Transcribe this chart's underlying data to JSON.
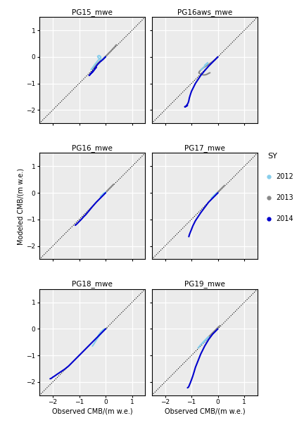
{
  "colors": {
    "2012": "#87CEEB",
    "2013": "#888888",
    "2014": "#0000CD"
  },
  "panel_titles": [
    "PG15_mwe",
    "PG16aws_mwe",
    "PG16_mwe",
    "PG17_mwe",
    "PG18_mwe",
    "PG19_mwe"
  ],
  "xlim": [
    -2.5,
    1.5
  ],
  "ylim": [
    -2.5,
    1.5
  ],
  "xticks": [
    -2,
    -1,
    0,
    1
  ],
  "yticks": [
    -2,
    -1,
    0,
    1
  ],
  "xlabel": "Observed CMB/(m w.e.)",
  "ylabel": "Modeled CMB/(m w.e.)",
  "legend_title": "SY",
  "legend_years": [
    "2012",
    "2013",
    "2014"
  ],
  "bg_color": "#ebebeb",
  "grid_color": "#ffffff",
  "title_fontsize": 7.5,
  "tick_fontsize": 6.5,
  "label_fontsize": 7,
  "linewidth": 1.5,
  "curves": {
    "PG15_mwe": {
      "2013": {
        "x": [
          -0.5,
          -0.4,
          -0.3,
          -0.2,
          -0.1,
          -0.05,
          0.0,
          0.1,
          0.2,
          0.3,
          0.35,
          0.38,
          0.4
        ],
        "y": [
          -0.45,
          -0.35,
          -0.25,
          -0.15,
          -0.07,
          -0.02,
          0.02,
          0.12,
          0.22,
          0.33,
          0.38,
          0.42,
          0.45
        ]
      },
      "2012": {
        "x": [
          -0.55,
          -0.5,
          -0.45,
          -0.4,
          -0.35,
          -0.3,
          -0.25,
          -0.2,
          -0.18,
          -0.2,
          -0.25,
          -0.3,
          -0.28,
          -0.22,
          -0.15,
          -0.1,
          -0.05,
          0.0
        ],
        "y": [
          -0.48,
          -0.42,
          -0.35,
          -0.28,
          -0.22,
          -0.15,
          -0.1,
          -0.05,
          -0.02,
          0.02,
          0.05,
          0.02,
          -0.03,
          -0.08,
          -0.12,
          -0.08,
          -0.03,
          0.0
        ]
      },
      "2014": {
        "x": [
          0.0,
          -0.05,
          -0.1,
          -0.2,
          -0.3,
          -0.35,
          -0.4,
          -0.42,
          -0.45,
          -0.5,
          -0.55,
          -0.58,
          -0.6,
          -0.62,
          -0.6,
          -0.55,
          -0.5,
          -0.45,
          -0.4,
          -0.35
        ],
        "y": [
          0.0,
          -0.05,
          -0.1,
          -0.18,
          -0.28,
          -0.35,
          -0.42,
          -0.48,
          -0.52,
          -0.58,
          -0.62,
          -0.65,
          -0.68,
          -0.7,
          -0.68,
          -0.62,
          -0.56,
          -0.5,
          -0.45,
          -0.4
        ]
      }
    },
    "PG16aws_mwe": {
      "2013": {
        "x": [
          0.0,
          -0.05,
          -0.1,
          -0.2,
          -0.3,
          -0.4,
          -0.5,
          -0.6,
          -0.65,
          -0.7,
          -0.72,
          -0.7,
          -0.65,
          -0.6,
          -0.55,
          -0.5,
          -0.45,
          -0.4,
          -0.35,
          -0.3
        ],
        "y": [
          0.0,
          -0.05,
          -0.1,
          -0.18,
          -0.25,
          -0.32,
          -0.38,
          -0.45,
          -0.5,
          -0.55,
          -0.6,
          -0.62,
          -0.65,
          -0.67,
          -0.68,
          -0.68,
          -0.67,
          -0.65,
          -0.62,
          -0.6
        ]
      },
      "2012": {
        "x": [
          -0.65,
          -0.6,
          -0.55,
          -0.5,
          -0.45,
          -0.42,
          -0.4,
          -0.38,
          -0.42,
          -0.48,
          -0.5
        ],
        "y": [
          -0.5,
          -0.45,
          -0.4,
          -0.35,
          -0.3,
          -0.28,
          -0.25,
          -0.22,
          -0.25,
          -0.3,
          -0.32
        ]
      },
      "2014": {
        "x": [
          0.0,
          -0.02,
          -0.05,
          -0.1,
          -0.2,
          -0.35,
          -0.5,
          -0.65,
          -0.75,
          -0.85,
          -0.9,
          -0.95,
          -1.0,
          -1.05,
          -1.08,
          -1.1,
          -1.12,
          -1.15,
          -1.18,
          -1.2,
          -1.22,
          -1.25,
          -1.22,
          -1.18,
          -1.15
        ],
        "y": [
          0.0,
          -0.02,
          -0.05,
          -0.1,
          -0.2,
          -0.35,
          -0.52,
          -0.7,
          -0.85,
          -1.0,
          -1.1,
          -1.2,
          -1.3,
          -1.45,
          -1.55,
          -1.65,
          -1.72,
          -1.78,
          -1.82,
          -1.85,
          -1.87,
          -1.88,
          -1.87,
          -1.85,
          -1.83
        ]
      }
    },
    "PG16_mwe": {
      "2013": {
        "x": [
          -0.1,
          -0.05,
          0.0,
          0.05,
          0.1,
          0.15,
          0.2,
          0.25,
          0.3
        ],
        "y": [
          -0.08,
          -0.03,
          0.02,
          0.07,
          0.12,
          0.17,
          0.22,
          0.27,
          0.32
        ]
      },
      "2012": {
        "x": [
          -0.2,
          -0.18,
          -0.15,
          -0.12,
          -0.1,
          -0.08,
          -0.05,
          -0.03,
          0.0,
          -0.03,
          -0.07,
          -0.12,
          -0.15,
          -0.18,
          -0.15,
          -0.1,
          -0.05,
          0.0
        ],
        "y": [
          -0.15,
          -0.12,
          -0.1,
          -0.07,
          -0.05,
          -0.03,
          -0.01,
          0.0,
          0.02,
          0.0,
          -0.03,
          -0.07,
          -0.1,
          -0.13,
          -0.1,
          -0.07,
          -0.03,
          0.0
        ]
      },
      "2014": {
        "x": [
          0.0,
          -0.02,
          -0.05,
          -0.1,
          -0.2,
          -0.35,
          -0.5,
          -0.65,
          -0.75,
          -0.85,
          -0.9,
          -0.95,
          -1.0,
          -1.05,
          -1.08,
          -1.1,
          -1.12,
          -1.15
        ],
        "y": [
          0.0,
          -0.02,
          -0.05,
          -0.1,
          -0.2,
          -0.35,
          -0.52,
          -0.7,
          -0.82,
          -0.92,
          -0.98,
          -1.03,
          -1.08,
          -1.13,
          -1.16,
          -1.18,
          -1.2,
          -1.22
        ]
      }
    },
    "PG17_mwe": {
      "2013": {
        "x": [
          -0.15,
          -0.1,
          -0.05,
          0.0,
          0.05,
          0.1,
          0.15,
          0.2,
          0.25
        ],
        "y": [
          -0.12,
          -0.07,
          -0.02,
          0.03,
          0.08,
          0.13,
          0.18,
          0.23,
          0.28
        ]
      },
      "2012": {
        "x": [
          -0.25,
          -0.22,
          -0.18,
          -0.15,
          -0.12,
          -0.1,
          -0.08,
          -0.05,
          -0.08,
          -0.12,
          -0.16,
          -0.18,
          -0.15,
          -0.1,
          -0.05,
          0.0
        ],
        "y": [
          -0.2,
          -0.17,
          -0.14,
          -0.11,
          -0.08,
          -0.06,
          -0.04,
          -0.02,
          -0.04,
          -0.07,
          -0.11,
          -0.14,
          -0.11,
          -0.07,
          -0.03,
          0.0
        ]
      },
      "2014": {
        "x": [
          0.0,
          -0.02,
          -0.05,
          -0.1,
          -0.2,
          -0.35,
          -0.5,
          -0.65,
          -0.75,
          -0.85,
          -0.9,
          -0.95,
          -1.0,
          -1.05,
          -1.08,
          -1.1
        ],
        "y": [
          0.0,
          -0.02,
          -0.05,
          -0.1,
          -0.2,
          -0.35,
          -0.55,
          -0.75,
          -0.9,
          -1.05,
          -1.15,
          -1.25,
          -1.38,
          -1.5,
          -1.58,
          -1.65
        ]
      }
    },
    "PG18_mwe": {
      "2013": {
        "x": [
          -0.05,
          0.0,
          0.02,
          0.04
        ],
        "y": [
          -0.02,
          0.0,
          0.01,
          0.02
        ]
      },
      "2012": {
        "x": [
          -0.5,
          -0.45,
          -0.4,
          -0.35,
          -0.3,
          -0.25,
          -0.2,
          -0.15,
          -0.12,
          -0.1,
          -0.08,
          -0.1,
          -0.15,
          -0.2,
          -0.25,
          -0.28,
          -0.25,
          -0.2,
          -0.15,
          -0.1,
          -0.05,
          0.0
        ],
        "y": [
          -0.65,
          -0.58,
          -0.5,
          -0.42,
          -0.35,
          -0.27,
          -0.2,
          -0.13,
          -0.08,
          -0.05,
          -0.03,
          -0.05,
          -0.1,
          -0.15,
          -0.22,
          -0.28,
          -0.22,
          -0.15,
          -0.1,
          -0.06,
          -0.02,
          0.0
        ]
      },
      "2014": {
        "x": [
          0.0,
          -0.02,
          -0.05,
          -0.1,
          -0.2,
          -0.35,
          -0.5,
          -0.65,
          -0.8,
          -0.95,
          -1.1,
          -1.25,
          -1.4,
          -1.55,
          -1.7,
          -1.82,
          -1.92,
          -2.0,
          -2.05,
          -2.1
        ],
        "y": [
          0.0,
          -0.02,
          -0.05,
          -0.1,
          -0.2,
          -0.35,
          -0.5,
          -0.65,
          -0.8,
          -0.95,
          -1.1,
          -1.25,
          -1.4,
          -1.52,
          -1.62,
          -1.7,
          -1.77,
          -1.82,
          -1.86,
          -1.88
        ]
      }
    },
    "PG19_mwe": {
      "2013": {
        "x": [
          -0.55,
          -0.45,
          -0.35,
          -0.25,
          -0.15,
          -0.05,
          0.02,
          0.08
        ],
        "y": [
          -0.5,
          -0.4,
          -0.3,
          -0.2,
          -0.1,
          0.0,
          0.07,
          0.12
        ]
      },
      "2012": {
        "x": [
          -0.75,
          -0.7,
          -0.65,
          -0.6,
          -0.55,
          -0.5,
          -0.45,
          -0.4,
          -0.38,
          -0.4,
          -0.45,
          -0.5,
          -0.55,
          -0.58,
          -0.55,
          -0.5,
          -0.45,
          -0.4,
          -0.35
        ],
        "y": [
          -0.72,
          -0.66,
          -0.6,
          -0.55,
          -0.5,
          -0.45,
          -0.4,
          -0.35,
          -0.32,
          -0.35,
          -0.4,
          -0.45,
          -0.5,
          -0.54,
          -0.5,
          -0.45,
          -0.4,
          -0.35,
          -0.3
        ]
      },
      "2014": {
        "x": [
          0.0,
          -0.02,
          -0.05,
          -0.1,
          -0.2,
          -0.35,
          -0.5,
          -0.65,
          -0.75,
          -0.85,
          -0.9,
          -0.95,
          -1.0,
          -1.05,
          -1.08,
          -1.1,
          -1.12,
          -1.15
        ],
        "y": [
          0.0,
          -0.02,
          -0.05,
          -0.1,
          -0.2,
          -0.4,
          -0.65,
          -0.95,
          -1.2,
          -1.45,
          -1.62,
          -1.78,
          -1.92,
          -2.05,
          -2.12,
          -2.17,
          -2.2,
          -2.22
        ]
      }
    }
  }
}
